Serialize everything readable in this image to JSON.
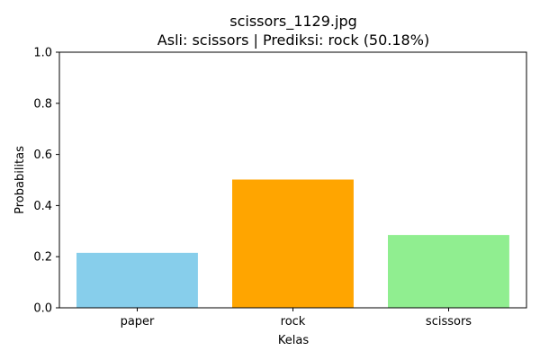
{
  "chart_data": {
    "type": "bar",
    "title": "scissors_1129.jpg",
    "subtitle": "Asli: scissors | Prediksi: rock (50.18%)",
    "xlabel": "Kelas",
    "ylabel": "Probabilitas",
    "categories": [
      "paper",
      "rock",
      "scissors"
    ],
    "values": [
      0.215,
      0.5018,
      0.285
    ],
    "colors": [
      "#87CEEB",
      "#FFA500",
      "#90EE90"
    ],
    "ylim": [
      0,
      1.0
    ],
    "yticks": [
      0.0,
      0.2,
      0.4,
      0.6,
      0.8,
      1.0
    ],
    "ytick_labels": [
      "0.0",
      "0.2",
      "0.4",
      "0.6",
      "0.8",
      "1.0"
    ],
    "grid": false
  }
}
